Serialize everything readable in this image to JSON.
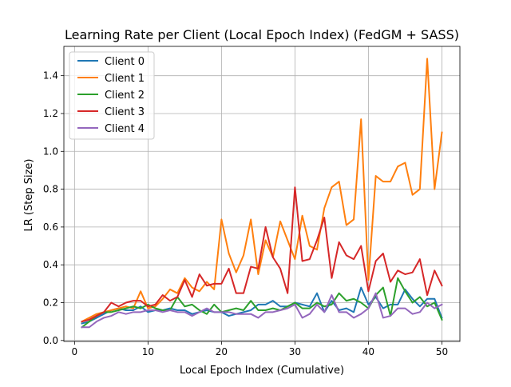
{
  "chart_data": {
    "type": "line",
    "title": "Learning Rate per Client (Local Epoch Index) (FedGM + SASS)",
    "xlabel": "Local Epoch Index (Cumulative)",
    "ylabel": "LR (Step Size)",
    "xlim": [
      -1.45,
      52.45
    ],
    "ylim": [
      -0.005,
      1.555
    ],
    "xticks": [
      0,
      10,
      20,
      30,
      40,
      50
    ],
    "yticks": [
      0.0,
      0.2,
      0.4,
      0.6,
      0.8,
      1.0,
      1.2,
      1.4
    ],
    "xtick_labels": [
      "0",
      "10",
      "20",
      "30",
      "40",
      "50"
    ],
    "ytick_labels": [
      "0.0",
      "0.2",
      "0.4",
      "0.6",
      "0.8",
      "1.0",
      "1.2",
      "1.4"
    ],
    "grid": true,
    "legend_position": "top-left",
    "x": [
      1,
      2,
      3,
      4,
      5,
      6,
      7,
      8,
      9,
      10,
      11,
      12,
      13,
      14,
      15,
      16,
      17,
      18,
      19,
      20,
      21,
      22,
      23,
      24,
      25,
      26,
      27,
      28,
      29,
      30,
      31,
      32,
      33,
      34,
      35,
      36,
      37,
      38,
      39,
      40,
      41,
      42,
      43,
      44,
      45,
      46,
      47,
      48,
      49,
      50
    ],
    "series": [
      {
        "name": "Client 0",
        "color": "#1f77b4",
        "values": [
          0.09,
          0.1,
          0.12,
          0.14,
          0.16,
          0.17,
          0.16,
          0.16,
          0.18,
          0.15,
          0.16,
          0.16,
          0.17,
          0.16,
          0.16,
          0.14,
          0.15,
          0.16,
          0.15,
          0.15,
          0.13,
          0.14,
          0.15,
          0.16,
          0.19,
          0.19,
          0.21,
          0.18,
          0.18,
          0.2,
          0.19,
          0.18,
          0.25,
          0.15,
          0.21,
          0.16,
          0.17,
          0.15,
          0.28,
          0.19,
          0.23,
          0.17,
          0.19,
          0.19,
          0.27,
          0.22,
          0.18,
          0.22,
          0.22,
          0.12
        ]
      },
      {
        "name": "Client 1",
        "color": "#ff7f0e",
        "values": [
          0.1,
          0.12,
          0.14,
          0.15,
          0.16,
          0.17,
          0.18,
          0.17,
          0.26,
          0.17,
          0.18,
          0.22,
          0.27,
          0.25,
          0.33,
          0.28,
          0.26,
          0.31,
          0.27,
          0.64,
          0.46,
          0.36,
          0.45,
          0.64,
          0.35,
          0.53,
          0.44,
          0.63,
          0.53,
          0.43,
          0.66,
          0.5,
          0.48,
          0.7,
          0.81,
          0.84,
          0.61,
          0.64,
          1.17,
          0.32,
          0.87,
          0.84,
          0.84,
          0.92,
          0.94,
          0.77,
          0.8,
          1.49,
          0.8,
          1.1
        ]
      },
      {
        "name": "Client 2",
        "color": "#2ca02c",
        "values": [
          0.07,
          0.1,
          0.13,
          0.15,
          0.15,
          0.16,
          0.17,
          0.18,
          0.17,
          0.19,
          0.17,
          0.16,
          0.16,
          0.23,
          0.18,
          0.19,
          0.16,
          0.14,
          0.19,
          0.15,
          0.16,
          0.17,
          0.16,
          0.21,
          0.16,
          0.16,
          0.17,
          0.16,
          0.18,
          0.2,
          0.17,
          0.17,
          0.2,
          0.18,
          0.19,
          0.25,
          0.21,
          0.22,
          0.2,
          0.17,
          0.24,
          0.28,
          0.13,
          0.33,
          0.26,
          0.2,
          0.23,
          0.18,
          0.2,
          0.11
        ]
      },
      {
        "name": "Client 3",
        "color": "#d62728",
        "values": [
          0.1,
          0.11,
          0.13,
          0.15,
          0.2,
          0.18,
          0.2,
          0.21,
          0.21,
          0.18,
          0.19,
          0.24,
          0.21,
          0.23,
          0.32,
          0.23,
          0.35,
          0.29,
          0.3,
          0.3,
          0.38,
          0.25,
          0.25,
          0.39,
          0.38,
          0.6,
          0.44,
          0.38,
          0.25,
          0.81,
          0.42,
          0.43,
          0.53,
          0.65,
          0.33,
          0.52,
          0.45,
          0.43,
          0.5,
          0.26,
          0.42,
          0.46,
          0.31,
          0.37,
          0.35,
          0.36,
          0.43,
          0.24,
          0.37,
          0.29
        ]
      },
      {
        "name": "Client 4",
        "color": "#9467bd",
        "values": [
          0.07,
          0.07,
          0.1,
          0.12,
          0.13,
          0.15,
          0.14,
          0.15,
          0.15,
          0.16,
          0.16,
          0.15,
          0.16,
          0.15,
          0.15,
          0.13,
          0.15,
          0.17,
          0.15,
          0.15,
          0.15,
          0.14,
          0.14,
          0.14,
          0.12,
          0.15,
          0.15,
          0.16,
          0.17,
          0.19,
          0.12,
          0.14,
          0.19,
          0.15,
          0.24,
          0.15,
          0.15,
          0.12,
          0.14,
          0.17,
          0.25,
          0.12,
          0.13,
          0.17,
          0.17,
          0.14,
          0.15,
          0.2,
          0.17,
          0.19
        ]
      }
    ]
  }
}
